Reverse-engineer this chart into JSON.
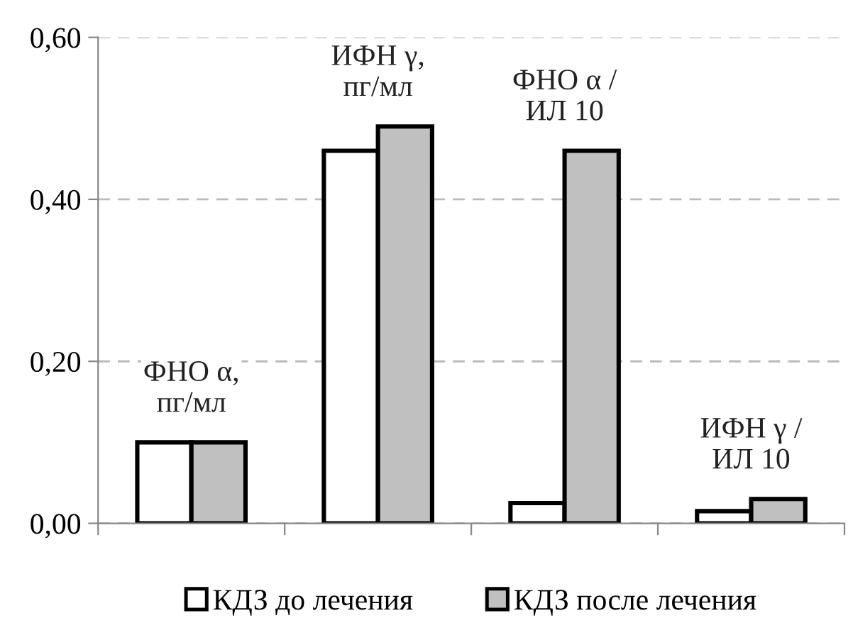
{
  "chart_data": {
    "type": "bar",
    "categories": [
      "ФНО α,\nпг/мл",
      "ИФН γ,\nпг/мл",
      "ФНО α /\nИЛ 10",
      "ИФН γ /\nИЛ 10"
    ],
    "series": [
      {
        "name": "КДЗ до лечения",
        "color": "#ffffff",
        "values": [
          0.1,
          0.46,
          0.025,
          0.015
        ]
      },
      {
        "name": "КДЗ после лечения",
        "color": "#c0c0c0",
        "values": [
          0.1,
          0.49,
          0.46,
          0.03
        ]
      }
    ],
    "ylim": [
      0,
      0.6
    ],
    "yticks": [
      {
        "value": 0,
        "label": "0,00"
      },
      {
        "value": 0.2,
        "label": "0,20"
      },
      {
        "value": 0.4,
        "label": "0,40"
      },
      {
        "value": 0.6,
        "label": "0,60"
      }
    ],
    "grid": "y",
    "legend": "bottom"
  }
}
